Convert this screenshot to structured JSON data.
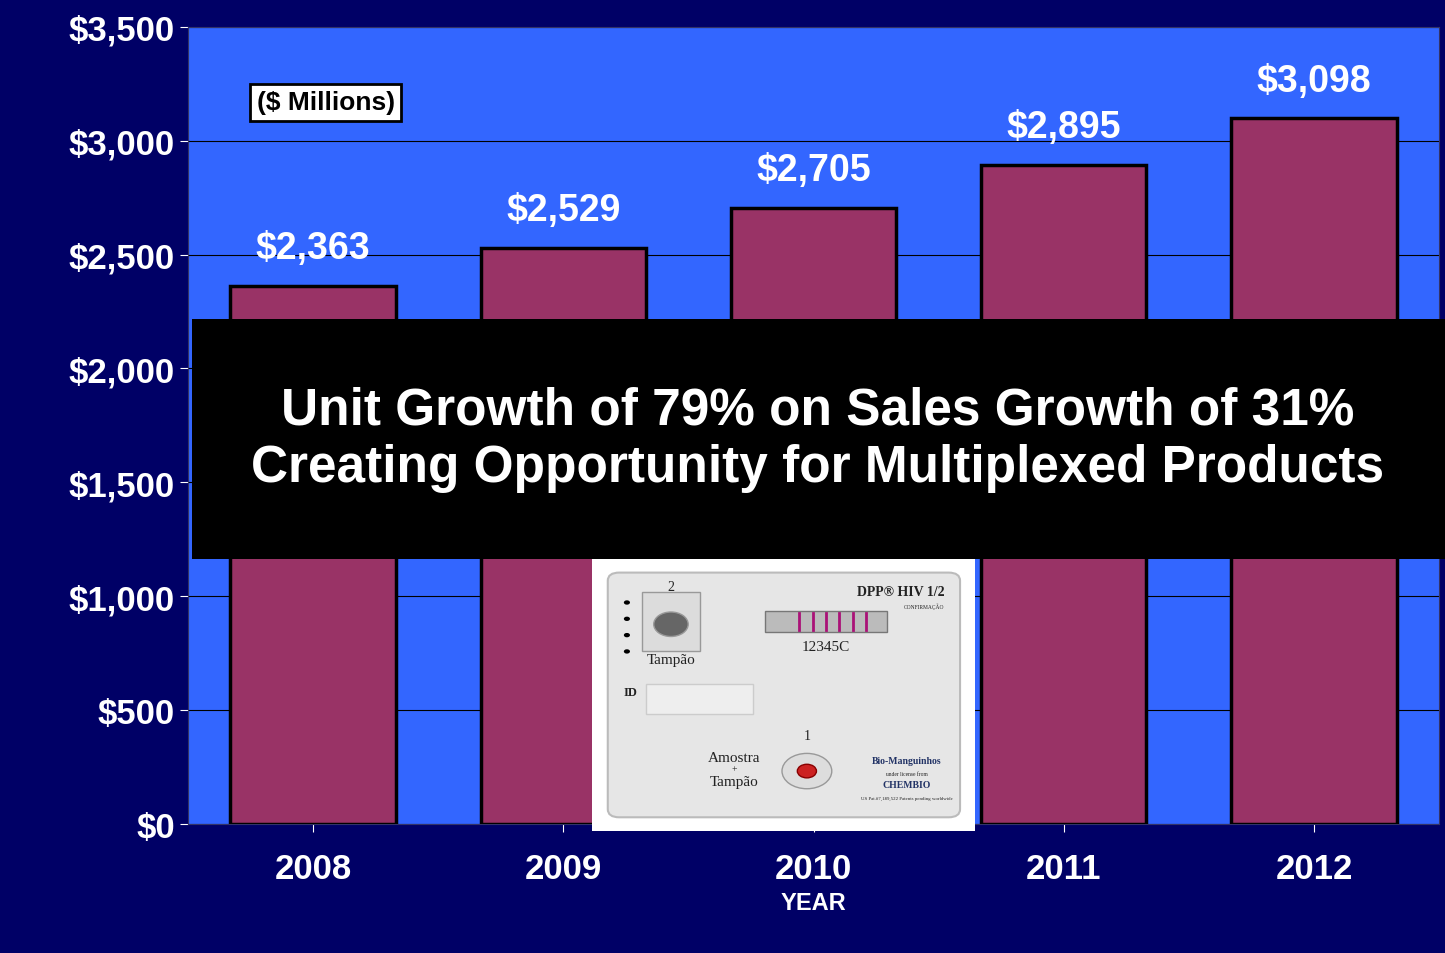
{
  "chart_data": {
    "type": "bar",
    "x_label": "YEAR",
    "categories": [
      "2008",
      "2009",
      "2010",
      "2011",
      "2012"
    ],
    "values": [
      2363,
      2529,
      2705,
      2895,
      3098
    ],
    "value_labels": [
      "$2,363",
      "$2,529",
      "$2,705",
      "$2,895",
      "$3,098"
    ],
    "data_labels": true,
    "color": "#993366",
    "ylim": [
      0,
      3500
    ],
    "yticks": [
      {
        "value": 0,
        "label": "$0"
      },
      {
        "value": 500,
        "label": "$500"
      },
      {
        "value": 1000,
        "label": "$1,000"
      },
      {
        "value": 1500,
        "label": "$1,500"
      },
      {
        "value": 2000,
        "label": "$2,000"
      },
      {
        "value": 2500,
        "label": "$2,500"
      },
      {
        "value": 3000,
        "label": "$3,000"
      },
      {
        "value": 3500,
        "label": "$3,500"
      }
    ],
    "grid": true,
    "annotations": [
      "($ Millions)",
      "Unit Growth of 79% on Sales Growth of 31% Creating Opportunity for Multiplexed Products",
      "2",
      "Tampão",
      "DPP® HIV 1/2",
      "CONFIRMAÇÃO",
      "12345C",
      "ID",
      "1",
      "Amostra",
      "+",
      "Tampão",
      "Bio-Manguinhos",
      "under license from",
      "CHEMBIO",
      "US Pat.#7,189,522 Patents pending worldwide"
    ]
  }
}
